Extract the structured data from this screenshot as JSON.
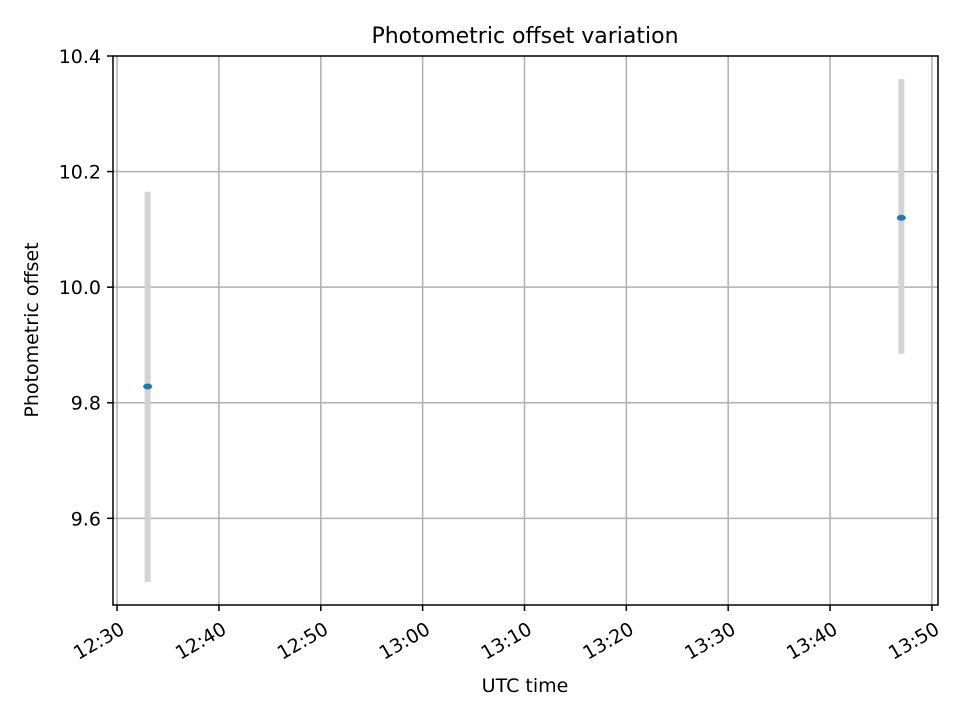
{
  "chart_data": {
    "type": "scatter",
    "title": "Photometric offset variation",
    "xlabel": "UTC time",
    "ylabel": "Photometric offset",
    "x_is_time": true,
    "xlim": [
      "12:29:36",
      "13:50:36"
    ],
    "ylim": [
      9.45,
      10.4
    ],
    "x_ticks": [
      "12:30",
      "12:40",
      "12:50",
      "13:00",
      "13:10",
      "13:20",
      "13:30",
      "13:40",
      "13:50"
    ],
    "y_ticks": [
      9.6,
      9.8,
      10.0,
      10.2,
      10.4
    ],
    "y_tick_labels": [
      "9.6",
      "9.8",
      "10.0",
      "10.2",
      "10.4"
    ],
    "grid": true,
    "x": [
      "12:33",
      "13:47"
    ],
    "values": [
      9.828,
      10.12
    ],
    "error_low": [
      9.49,
      9.885
    ],
    "error_high": [
      10.165,
      10.36
    ],
    "colors": {
      "point": "#1f77b4",
      "errorbar": "#d3d3d3",
      "grid": "#b0b0b0"
    }
  }
}
